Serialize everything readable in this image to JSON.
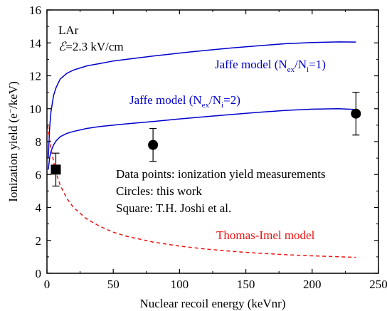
{
  "chart_data": {
    "type": "line",
    "xlabel": "Nuclear recoil energy (keVnr)",
    "ylabel_parts": {
      "pre": "Ionization yield (e",
      "sup": "−",
      "post": "/keV)"
    },
    "xlim": [
      0,
      250
    ],
    "ylim": [
      0,
      16
    ],
    "x_ticks": [
      0,
      50,
      100,
      150,
      200,
      250
    ],
    "y_ticks": [
      0,
      2,
      4,
      6,
      8,
      10,
      12,
      14,
      16
    ],
    "grid": false,
    "info": {
      "line1": "LAr",
      "field_symbol": "ℰ",
      "field_value": "=2.3 kV/cm"
    },
    "legend_lines": [
      "Data points: ionization yield measurements",
      "Circles: this work",
      "Square: T.H. Joshi et al."
    ],
    "series": [
      {
        "label_parts": {
          "pre": "Jaffe model (N",
          "sub1": "ex",
          "mid": "/N",
          "sub2": "i",
          "post": "=1)"
        },
        "color": "#0000cc",
        "dash": "",
        "x": [
          1,
          2,
          3,
          5,
          7,
          10,
          15,
          20,
          30,
          40,
          50,
          60,
          80,
          100,
          120,
          140,
          160,
          180,
          200,
          220,
          233
        ],
        "y": [
          7.0,
          8.8,
          9.8,
          10.8,
          11.3,
          11.8,
          12.15,
          12.35,
          12.6,
          12.75,
          12.9,
          13.0,
          13.2,
          13.38,
          13.55,
          13.7,
          13.83,
          13.95,
          14.02,
          14.06,
          14.05
        ]
      },
      {
        "label_parts": {
          "pre": "Jaffe model (N",
          "sub1": "ex",
          "mid": "/N",
          "sub2": "i",
          "post": "=2)"
        },
        "color": "#0000cc",
        "dash": "",
        "x": [
          1,
          2,
          3,
          5,
          7,
          10,
          15,
          20,
          30,
          40,
          50,
          60,
          80,
          100,
          120,
          140,
          160,
          180,
          200,
          220,
          233
        ],
        "y": [
          6.3,
          7.0,
          7.4,
          7.8,
          8.05,
          8.3,
          8.5,
          8.62,
          8.8,
          8.92,
          9.0,
          9.08,
          9.22,
          9.38,
          9.52,
          9.65,
          9.78,
          9.9,
          9.97,
          10.0,
          9.95
        ]
      },
      {
        "label": "Thomas-Imel model",
        "color": "#ee1111",
        "dash": "5,4",
        "x": [
          0.5,
          1,
          2,
          3,
          5,
          7,
          10,
          15,
          20,
          30,
          40,
          50,
          60,
          80,
          100,
          120,
          140,
          160,
          180,
          200,
          233
        ],
        "y": [
          9.0,
          8.7,
          8.1,
          7.6,
          6.8,
          6.1,
          5.35,
          4.55,
          4.0,
          3.3,
          2.85,
          2.5,
          2.25,
          1.9,
          1.65,
          1.47,
          1.33,
          1.22,
          1.13,
          1.06,
          0.97
        ]
      }
    ],
    "points": [
      {
        "marker": "square",
        "x": 6.7,
        "y": 6.3,
        "yerr_low": 5.3,
        "yerr_high": 7.3
      },
      {
        "marker": "circle",
        "x": 80,
        "y": 7.8,
        "yerr_low": 6.8,
        "yerr_high": 8.8
      },
      {
        "marker": "circle",
        "x": 233,
        "y": 9.7,
        "yerr_low": 8.4,
        "yerr_high": 11.0
      }
    ]
  }
}
